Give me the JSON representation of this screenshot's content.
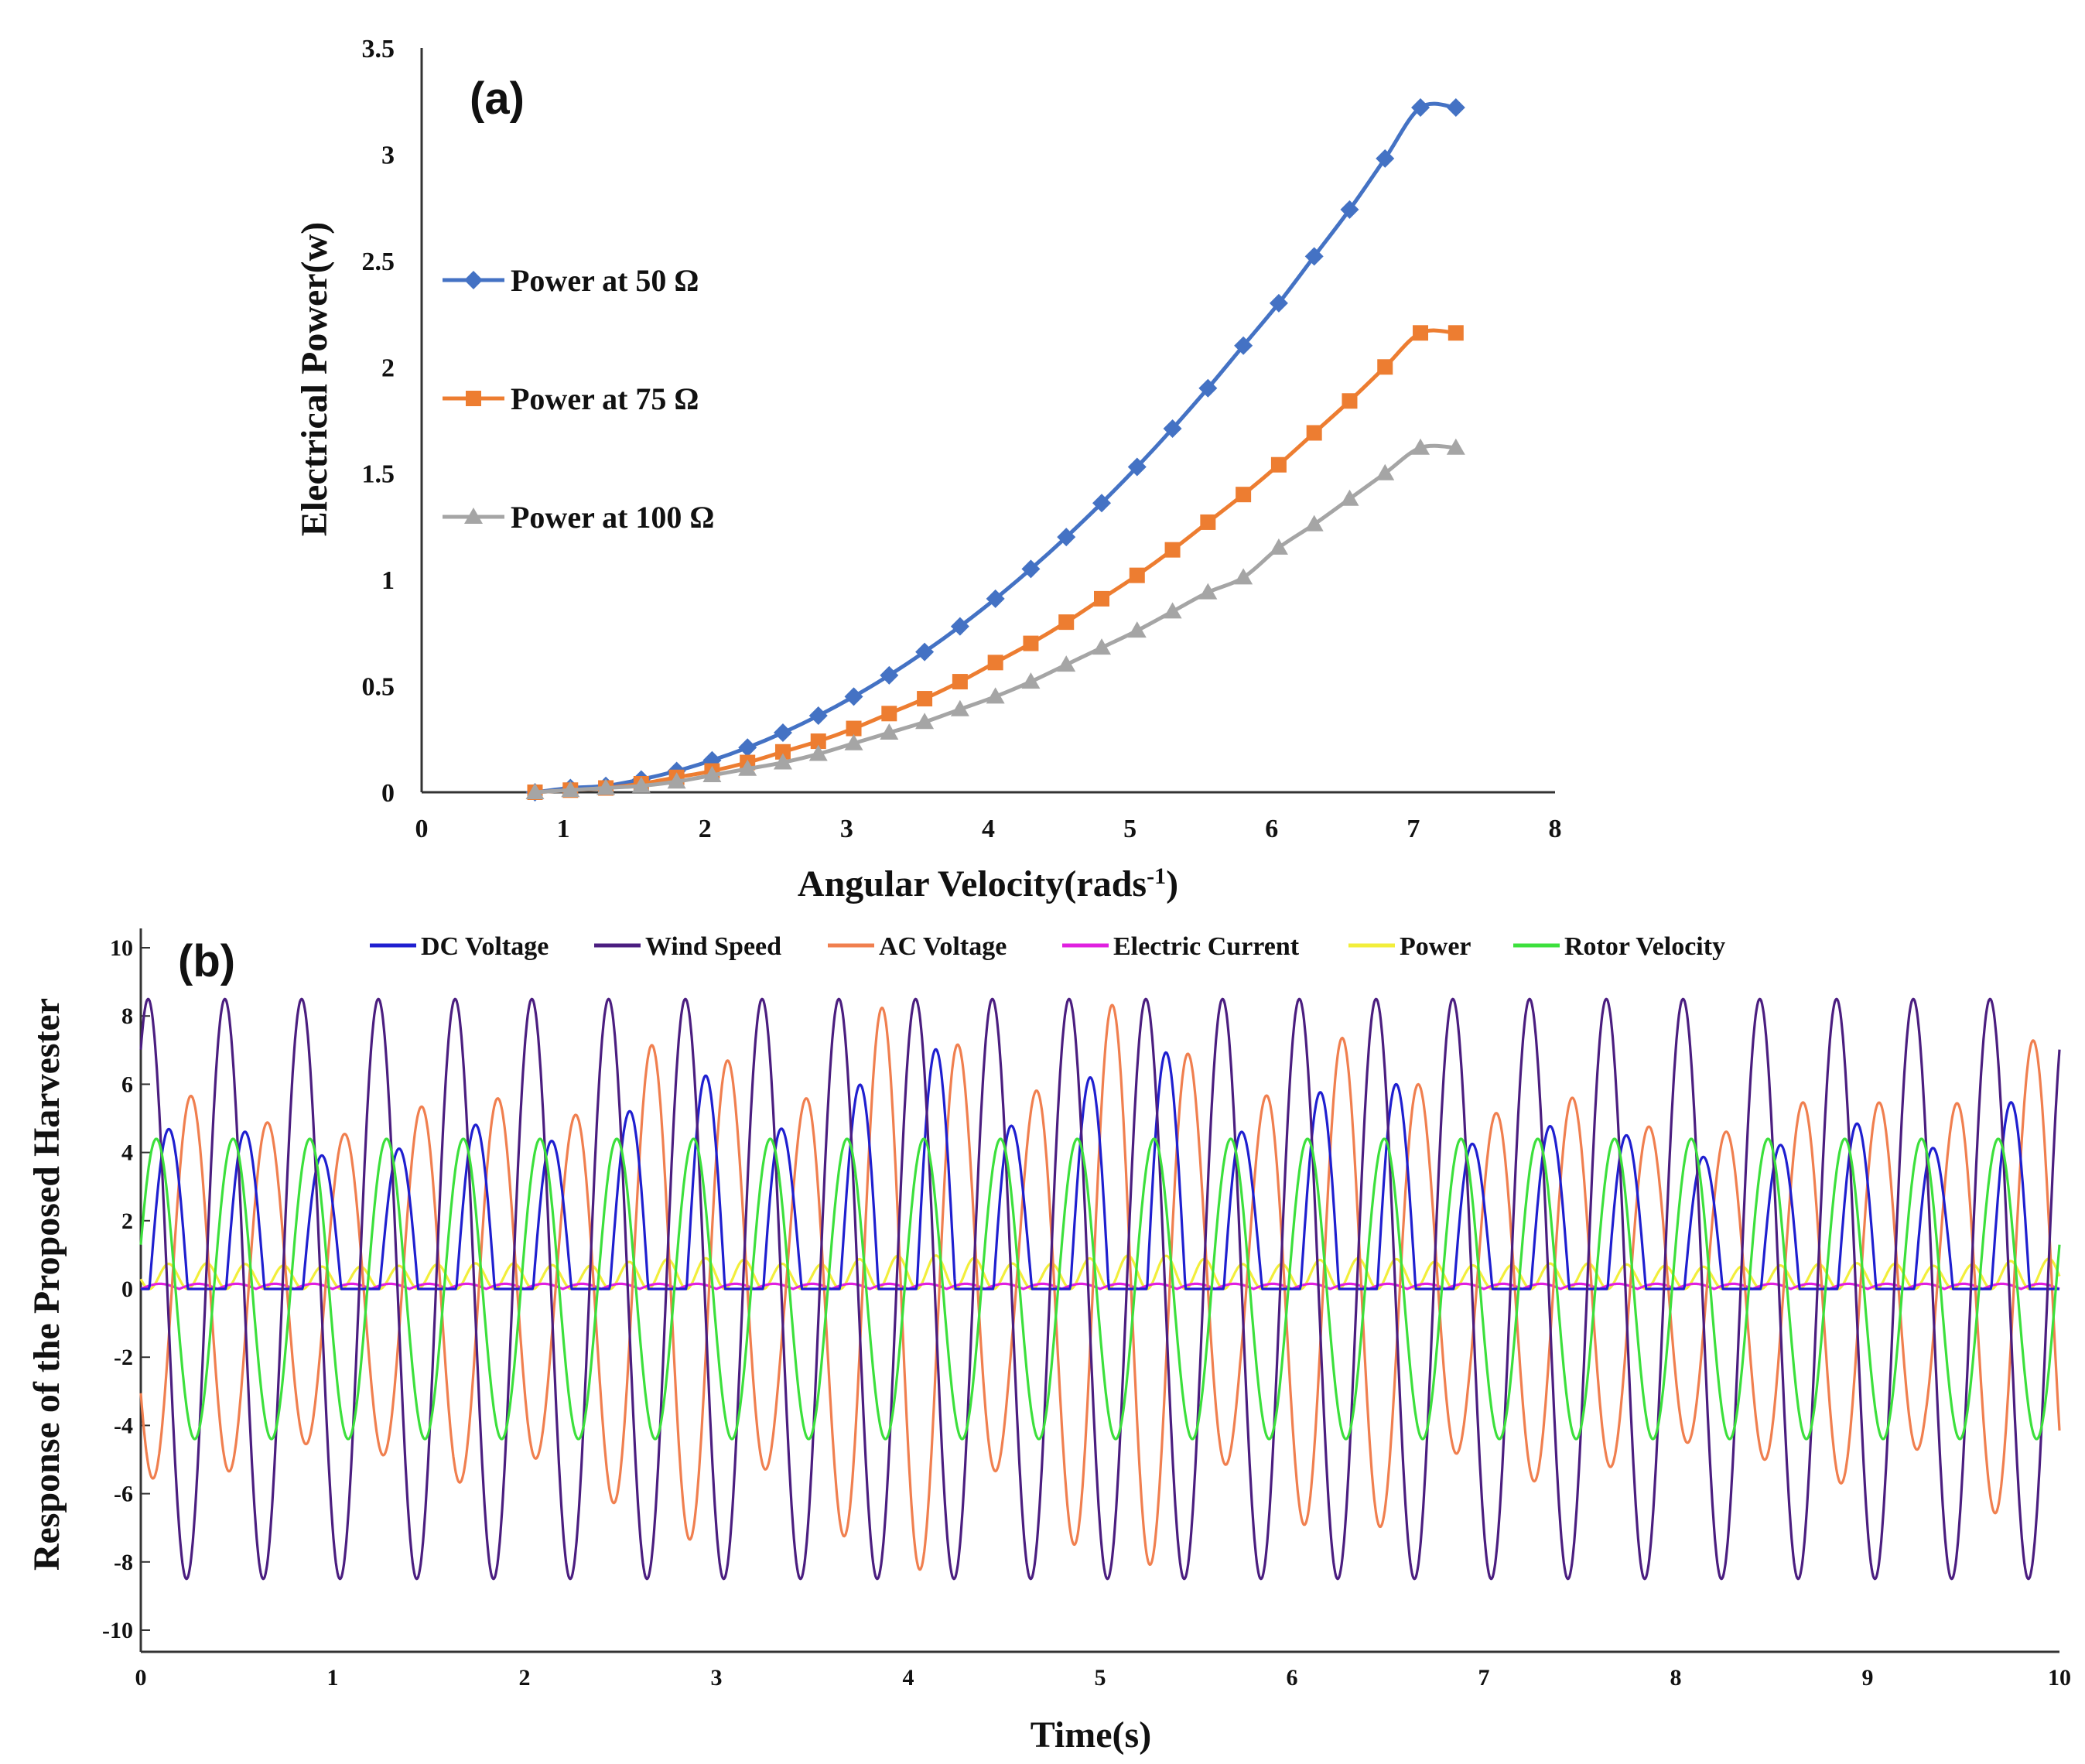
{
  "chart_data": [
    {
      "type": "line",
      "panel_label": "(a)",
      "title": "",
      "xlabel": "Angular Velocity(rads",
      "xlabel_sup": "-1",
      "xlabel_end": ")",
      "ylabel": "Electrical Power(w)",
      "xlim": [
        0,
        8
      ],
      "ylim": [
        0,
        3.5
      ],
      "xticks": [
        "0",
        "1",
        "2",
        "3",
        "4",
        "5",
        "6",
        "7",
        "8"
      ],
      "yticks": [
        "0",
        "0.5",
        "1",
        "1.5",
        "2",
        "2.5",
        "3",
        "3.5"
      ],
      "grid": false,
      "legend_position": "center-left",
      "x": [
        0.8,
        1.05,
        1.3,
        1.55,
        1.8,
        2.05,
        2.3,
        2.55,
        2.8,
        3.05,
        3.3,
        3.55,
        3.8,
        4.05,
        4.3,
        4.55,
        4.8,
        5.05,
        5.3,
        5.55,
        5.8,
        6.05,
        6.3,
        6.55,
        6.8,
        7.05,
        7.3
      ],
      "series": [
        {
          "name": "Power at 50 Ω",
          "color": "#4472C4",
          "marker": "diamond",
          "values": [
            0.0,
            0.02,
            0.03,
            0.06,
            0.1,
            0.15,
            0.21,
            0.28,
            0.36,
            0.45,
            0.55,
            0.66,
            0.78,
            0.91,
            1.05,
            1.2,
            1.36,
            1.53,
            1.71,
            1.9,
            2.1,
            2.3,
            2.52,
            2.74,
            2.98,
            3.22,
            3.22
          ]
        },
        {
          "name": "Power at 75 Ω",
          "color": "#ED7D31",
          "marker": "square",
          "values": [
            0.0,
            0.01,
            0.02,
            0.04,
            0.07,
            0.1,
            0.14,
            0.19,
            0.24,
            0.3,
            0.37,
            0.44,
            0.52,
            0.61,
            0.7,
            0.8,
            0.91,
            1.02,
            1.14,
            1.27,
            1.4,
            1.54,
            1.69,
            1.84,
            2.0,
            2.16,
            2.16
          ]
        },
        {
          "name": "Power at 100 Ω",
          "color": "#A5A5A5",
          "marker": "triangle",
          "values": [
            0.0,
            0.01,
            0.02,
            0.03,
            0.05,
            0.08,
            0.11,
            0.14,
            0.18,
            0.23,
            0.28,
            0.33,
            0.39,
            0.45,
            0.52,
            0.6,
            0.68,
            0.76,
            0.85,
            0.94,
            1.01,
            1.15,
            1.26,
            1.38,
            1.5,
            1.62,
            1.62
          ]
        }
      ]
    },
    {
      "type": "line",
      "panel_label": "(b)",
      "title": "",
      "xlabel": "Time(s)",
      "ylabel": "Response of the Proposed Harvester",
      "xlim": [
        0,
        10
      ],
      "ylim": [
        -10,
        10
      ],
      "xticks": [
        "0",
        "1",
        "2",
        "3",
        "4",
        "5",
        "6",
        "7",
        "8",
        "9",
        "10"
      ],
      "yticks": [
        "-10",
        "-8",
        "-6",
        "-4",
        "-2",
        "0",
        "2",
        "4",
        "6",
        "8",
        "10"
      ],
      "grid": false,
      "legend_position": "top",
      "series": [
        {
          "name": "DC Voltage",
          "color": "#1F1FD0",
          "kind": "rectified",
          "frequency_hz": 2.5,
          "amplitude_range": [
            0.5,
            7.2
          ]
        },
        {
          "name": "Wind Speed",
          "color": "#4B1E80",
          "kind": "sine",
          "frequency_hz": 2.5,
          "amplitude": 8.5
        },
        {
          "name": "AC Voltage",
          "color": "#F07F4F",
          "kind": "modulated-sine",
          "frequency_hz": 2.5,
          "amplitude_range": [
            0.5,
            8.5
          ]
        },
        {
          "name": "Electric Current",
          "color": "#E020E0",
          "kind": "rectified",
          "frequency_hz": 2.5,
          "amplitude": 0.15
        },
        {
          "name": "Power",
          "color": "#F2EE3A",
          "kind": "rectified",
          "frequency_hz": 5,
          "amplitude": 1.0
        },
        {
          "name": "Rotor Velocity",
          "color": "#3CE03C",
          "kind": "sine",
          "frequency_hz": 2.5,
          "amplitude": 4.4
        }
      ]
    }
  ]
}
